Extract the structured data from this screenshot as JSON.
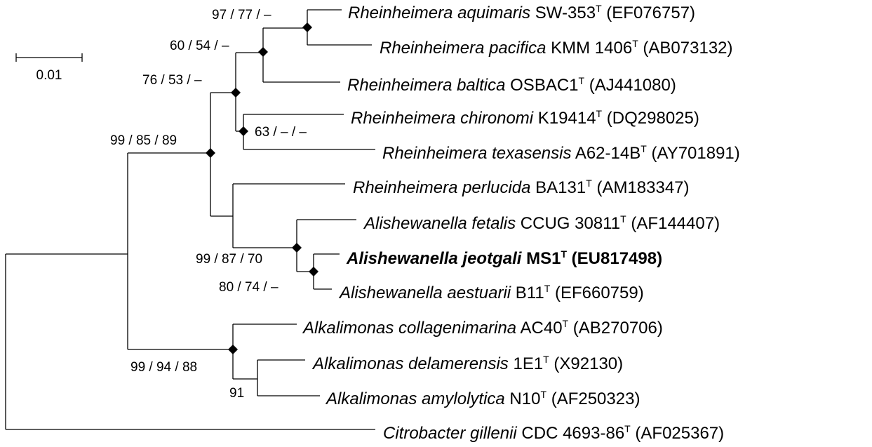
{
  "scale_bar": {
    "label": "0.01"
  },
  "taxa": [
    {
      "name": "Rheinheimera aquimaris",
      "strain": "SW-353",
      "type_mark": "T",
      "accession": "(EF076757)",
      "bold": false
    },
    {
      "name": "Rheinheimera pacifica",
      "strain": "KMM 1406",
      "type_mark": "T",
      "accession": "(AB073132)",
      "bold": false
    },
    {
      "name": "Rheinheimera baltica",
      "strain": "OSBAC1",
      "type_mark": "T",
      "accession": "(AJ441080)",
      "bold": false
    },
    {
      "name": "Rheinheimera chironomi",
      "strain": "K19414",
      "type_mark": "T",
      "accession": "(DQ298025)",
      "bold": false
    },
    {
      "name": "Rheinheimera texasensis",
      "strain": "A62-14B",
      "type_mark": "T",
      "accession": "(AY701891)",
      "bold": false
    },
    {
      "name": "Rheinheimera perlucida",
      "strain": "BA131",
      "type_mark": "T",
      "accession": "(AM183347)",
      "bold": false
    },
    {
      "name": "Alishewanella fetalis",
      "strain": "CCUG 30811",
      "type_mark": "T",
      "accession": "(AF144407)",
      "bold": false
    },
    {
      "name": "Alishewanella jeotgali",
      "strain": "MS1",
      "type_mark": "T",
      "accession": "(EU817498)",
      "bold": true
    },
    {
      "name": "Alishewanella aestuarii",
      "strain": "B11",
      "type_mark": "T",
      "accession": "(EF660759)",
      "bold": false
    },
    {
      "name": "Alkalimonas collagenimarina",
      "strain": "AC40",
      "type_mark": "T",
      "accession": "(AB270706)",
      "bold": false
    },
    {
      "name": "Alkalimonas delamerensis",
      "strain": "1E1",
      "type_mark": "T",
      "accession": "(X92130)",
      "bold": false
    },
    {
      "name": "Alkalimonas amylolytica",
      "strain": "N10",
      "type_mark": "T",
      "accession": "(AF250323)",
      "bold": false
    },
    {
      "name": "Citrobacter gillenii",
      "strain": "CDC 4693-86",
      "type_mark": "T",
      "accession": "(AF025367)",
      "bold": false
    }
  ],
  "support_values": {
    "aquimaris_pacifica": "97 / 77 / –",
    "aquimaris_pacifica_baltica": "60 / 54 / –",
    "rheinheimera_inner": "76 / 53 / –",
    "chironomi_texasensis": "63 / – / –",
    "rheinheimera_alishewanella": "99 / 85 / 89",
    "alishewanella": "99 / 87 / 70",
    "jeotgali_aestuarii": "80 / 74 / –",
    "alkalimonas": "99 / 94 / 88",
    "delamerensis_amylolytica": "91"
  }
}
